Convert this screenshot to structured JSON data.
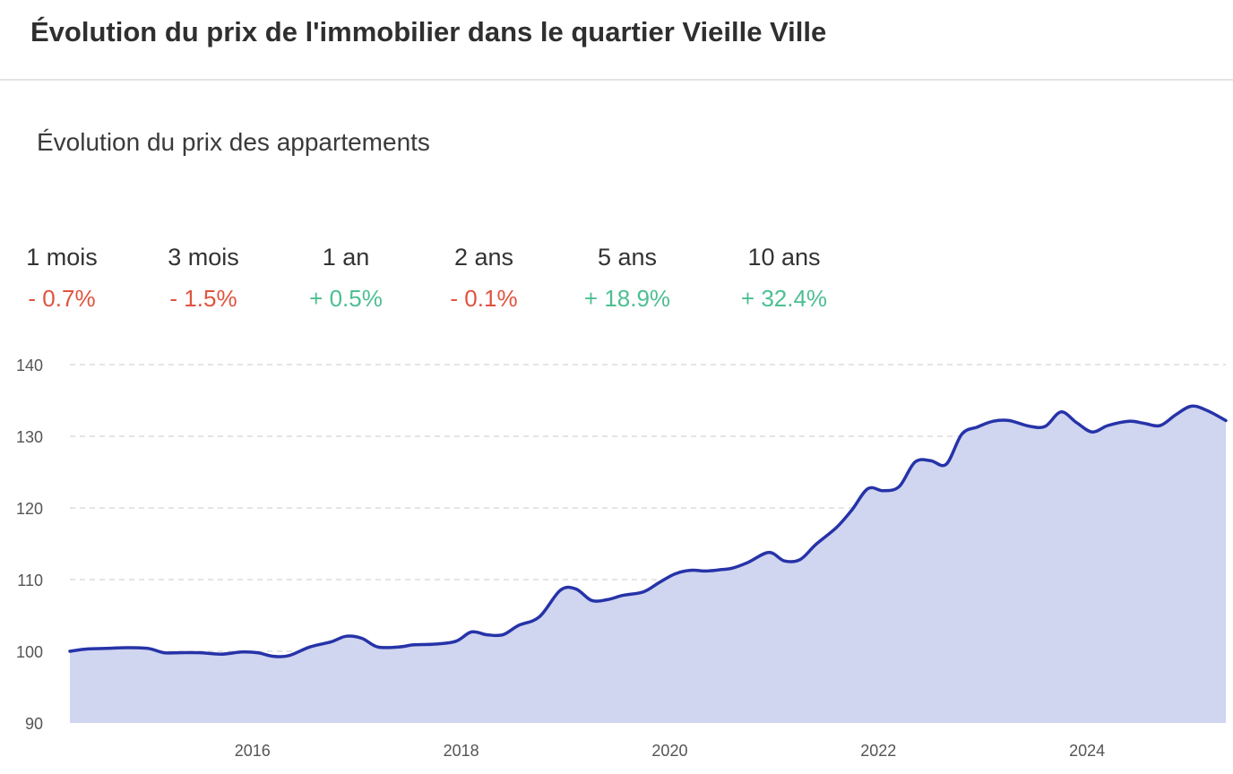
{
  "page": {
    "title": "Évolution du prix de l'immobilier dans le quartier Vieille Ville"
  },
  "section": {
    "title": "Évolution du prix des appartements"
  },
  "colors": {
    "negative": "#e0533f",
    "positive": "#4cbf92",
    "line": "#2633a8",
    "area": "#d0d5f0",
    "grid": "#dcdcdc"
  },
  "stats": [
    {
      "label": "1 mois",
      "value": "- 0.7%",
      "trend": "negative"
    },
    {
      "label": "3 mois",
      "value": "- 1.5%",
      "trend": "negative"
    },
    {
      "label": "1 an",
      "value": "+ 0.5%",
      "trend": "positive"
    },
    {
      "label": "2 ans",
      "value": "- 0.1%",
      "trend": "negative"
    },
    {
      "label": "5 ans",
      "value": "+ 18.9%",
      "trend": "positive"
    },
    {
      "label": "10 ans",
      "value": "+ 32.4%",
      "trend": "positive"
    }
  ],
  "chart_data": {
    "type": "area",
    "title": "",
    "xlabel": "",
    "ylabel": "",
    "xlim": [
      2014.25,
      2025.33
    ],
    "ylim": [
      90,
      140
    ],
    "yticks": [
      90,
      100,
      110,
      120,
      130,
      140
    ],
    "xticks": [
      2016,
      2018,
      2020,
      2022,
      2024
    ],
    "grid": "horizontal dashed",
    "legend": "none",
    "series": [
      {
        "x": [
          2014.25,
          2014.4,
          2014.6,
          2014.8,
          2015.0,
          2015.15,
          2015.3,
          2015.5,
          2015.7,
          2015.9,
          2016.05,
          2016.2,
          2016.35,
          2016.55,
          2016.75,
          2016.9,
          2017.05,
          2017.2,
          2017.4,
          2017.55,
          2017.75,
          2017.95,
          2018.1,
          2018.25,
          2018.4,
          2018.55,
          2018.75,
          2018.95,
          2019.1,
          2019.25,
          2019.4,
          2019.55,
          2019.75,
          2019.9,
          2020.05,
          2020.2,
          2020.35,
          2020.5,
          2020.6,
          2020.75,
          2020.95,
          2021.1,
          2021.25,
          2021.4,
          2021.6,
          2021.75,
          2021.9,
          2022.05,
          2022.2,
          2022.35,
          2022.5,
          2022.65,
          2022.8,
          2022.95,
          2023.1,
          2023.25,
          2023.45,
          2023.6,
          2023.75,
          2023.9,
          2024.05,
          2024.2,
          2024.4,
          2024.55,
          2024.7,
          2024.85,
          2025.0,
          2025.15,
          2025.33
        ],
        "values": [
          100.0,
          100.3,
          100.4,
          100.5,
          100.4,
          99.8,
          99.8,
          99.8,
          99.6,
          99.9,
          99.8,
          99.3,
          99.4,
          100.6,
          101.3,
          102.1,
          101.8,
          100.6,
          100.6,
          100.9,
          101.0,
          101.4,
          102.7,
          102.3,
          102.3,
          103.6,
          104.8,
          108.5,
          108.7,
          107.1,
          107.2,
          107.8,
          108.3,
          109.6,
          110.8,
          111.3,
          111.2,
          111.4,
          111.6,
          112.4,
          113.8,
          112.6,
          112.8,
          114.9,
          117.3,
          119.8,
          122.7,
          122.4,
          123.0,
          126.4,
          126.6,
          126.1,
          130.3,
          131.3,
          132.1,
          132.2,
          131.4,
          131.4,
          133.4,
          131.9,
          130.6,
          131.5,
          132.1,
          131.8,
          131.5,
          133.0,
          134.2,
          133.6,
          132.2
        ]
      }
    ]
  }
}
